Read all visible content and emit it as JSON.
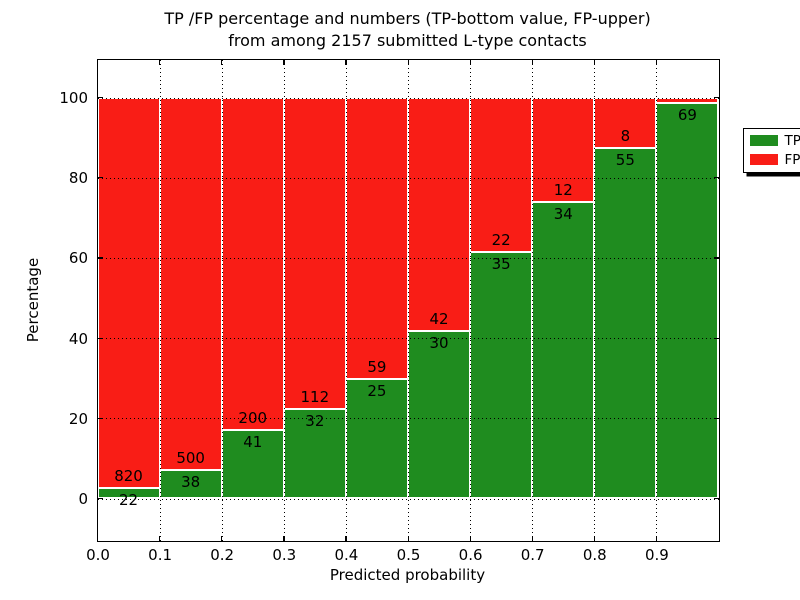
{
  "title": {
    "line1": "TP /FP percentage and numbers (TP-bottom value, FP-upper)",
    "line2": "from among 2157 submitted L-type contacts"
  },
  "axes": {
    "xlabel": "Predicted probability",
    "ylabel": "Percentage",
    "xtick_labels": [
      "0.0",
      "0.1",
      "0.2",
      "0.3",
      "0.4",
      "0.5",
      "0.6",
      "0.7",
      "0.8",
      "0.9"
    ],
    "ytick_labels": [
      "0",
      "20",
      "40",
      "60",
      "80",
      "100"
    ],
    "ytick_values": [
      0,
      20,
      40,
      60,
      80,
      100
    ]
  },
  "legend": {
    "items": [
      {
        "label": "TP",
        "color": "#1f8c1f"
      },
      {
        "label": "FP",
        "color": "#f91d16"
      }
    ],
    "position": "upper right"
  },
  "colors": {
    "tp": "#1f8c1f",
    "fp": "#f91d16",
    "grid": "#000000",
    "background": "#ffffff"
  },
  "chart_data": {
    "type": "bar",
    "stacked": true,
    "title": "TP /FP percentage and numbers (TP-bottom value, FP-upper) from among 2157 submitted L-type contacts",
    "xlabel": "Predicted probability",
    "ylabel": "Percentage",
    "categories": [
      "0.0-0.1",
      "0.1-0.2",
      "0.2-0.3",
      "0.3-0.4",
      "0.4-0.5",
      "0.5-0.6",
      "0.6-0.7",
      "0.7-0.8",
      "0.8-0.9",
      "0.9-1.0"
    ],
    "series": [
      {
        "name": "TP",
        "counts": [
          22,
          38,
          41,
          32,
          25,
          30,
          35,
          34,
          55,
          69
        ]
      },
      {
        "name": "FP",
        "counts": [
          820,
          500,
          200,
          112,
          59,
          42,
          22,
          12,
          8,
          1
        ]
      }
    ],
    "tp_percent": [
      2.61,
      7.06,
      17.01,
      22.22,
      29.76,
      41.67,
      61.4,
      73.91,
      87.3,
      98.57
    ],
    "total_contacts": 2157,
    "ylim_labeled": [
      0,
      100
    ],
    "grid": "dotted",
    "legend_position": "upper right",
    "bar_labels": {
      "tp": [
        "22",
        "38",
        "41",
        "32",
        "25",
        "30",
        "35",
        "34",
        "55",
        "69"
      ],
      "fp": [
        "820",
        "500",
        "200",
        "112",
        "59",
        "42",
        "22",
        "12",
        "8",
        ""
      ]
    }
  }
}
